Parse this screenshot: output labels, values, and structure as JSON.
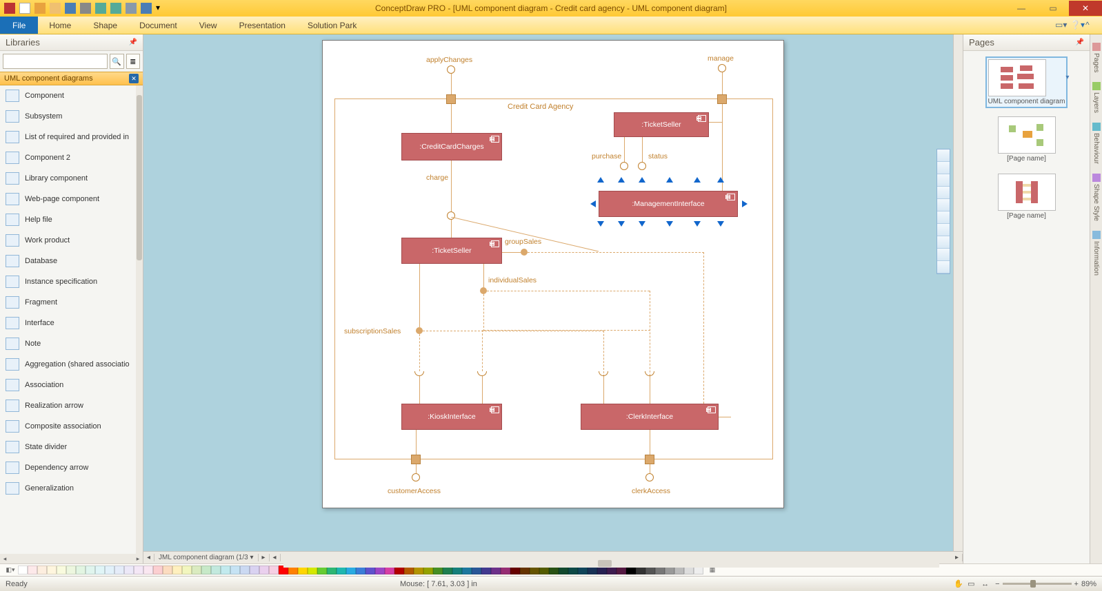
{
  "titlebar": {
    "title": "ConceptDraw PRO - [UML component diagram - Credit card agency - UML component diagram]",
    "quick_icons": [
      "app",
      "new",
      "open",
      "folder",
      "save",
      "cut",
      "undo",
      "redo",
      "print",
      "saveall",
      "chevron"
    ]
  },
  "ribbon": {
    "file": "File",
    "tabs": [
      "Home",
      "Shape",
      "Document",
      "View",
      "Presentation",
      "Solution Park"
    ]
  },
  "libraries": {
    "title": "Libraries",
    "search_placeholder": "",
    "category": "UML component diagrams",
    "items": [
      "Component",
      "Subsystem",
      "List of required and provided in",
      "Component 2",
      "Library component",
      "Web-page component",
      "Help file",
      "Work product",
      "Database",
      "Instance specification",
      "Fragment",
      "Interface",
      "Note",
      "Aggregation (shared associatio",
      "Association",
      "Realization arrow",
      "Composite association",
      "State divider",
      "Dependency arrow",
      "Generalization"
    ]
  },
  "diagram": {
    "container_label": "Credit Card Agency",
    "components": {
      "credit_card_charges": ":CreditCardCharges",
      "ticket_seller_top": ":TicketSeller",
      "management_interface": ":ManagementInterface",
      "ticket_seller_mid": ":TicketSeller",
      "kiosk_interface": ":KioskInterface",
      "clerk_interface": ":ClerkInterface"
    },
    "labels": {
      "apply_changes": "applyChanges",
      "manage": "manage",
      "charge": "charge",
      "purchase": "purchase",
      "status": "status",
      "group_sales": "groupSales",
      "individual_sales": "individualSales",
      "subscription_sales": "subscriptionSales",
      "customer_access": "customerAccess",
      "clerk_access": "clerkAccess"
    },
    "colors": {
      "component_fill": "#c96769",
      "component_border": "#a34a4c",
      "connector": "#dba86b",
      "label_color": "#c1812e",
      "canvas_bg": "#aed2dd",
      "page_bg": "#ffffff",
      "selection": "#1166cc"
    }
  },
  "tab_bar": {
    "active": "JML component diagram (1/3"
  },
  "pages_panel": {
    "title": "Pages",
    "thumbs": [
      {
        "label": "UML component diagram",
        "selected": true
      },
      {
        "label": "[Page name]",
        "selected": false
      },
      {
        "label": "[Page name]",
        "selected": false
      }
    ]
  },
  "vtabs": [
    "Pages",
    "Layers",
    "Behaviour",
    "Shape Style",
    "Information"
  ],
  "statusbar": {
    "ready": "Ready",
    "mouse": "Mouse: [ 7.61, 3.03 ] in",
    "zoom": "89%"
  },
  "colorbar": [
    "#ffffff",
    "#fde9ea",
    "#fdeedf",
    "#fff6de",
    "#f9fbde",
    "#edf7df",
    "#e2f5e2",
    "#e0f5ee",
    "#e0f5f7",
    "#e2f1fa",
    "#e5ecf9",
    "#ece8f8",
    "#f4e7f6",
    "#fae7f1",
    "#fccfd1",
    "#fcdcc0",
    "#fff0be",
    "#f2f6be",
    "#daebc0",
    "#c7e9c8",
    "#c2e9de",
    "#c2eaee",
    "#c6e3f4",
    "#cbd9f2",
    "#d9d2f1",
    "#ead0ee",
    "#f6cfe3",
    "#ff0000",
    "#ff8000",
    "#ffd500",
    "#d4e800",
    "#66cc33",
    "#2cb673",
    "#1fb7b0",
    "#29abe2",
    "#3b7dd8",
    "#5f52cc",
    "#9c46c6",
    "#d63fa5",
    "#b30000",
    "#b35900",
    "#b39400",
    "#94a200",
    "#478f24",
    "#1f7f50",
    "#16807b",
    "#1d789e",
    "#295797",
    "#42398f",
    "#6d318a",
    "#962c73",
    "#660000",
    "#663300",
    "#665400",
    "#545c00",
    "#295214",
    "#12492e",
    "#0d4946",
    "#10455a",
    "#183256",
    "#262152",
    "#3e1c4f",
    "#551942",
    "#000000",
    "#333333",
    "#555555",
    "#777777",
    "#999999",
    "#bbbbbb",
    "#dddddd",
    "#eeeeee"
  ]
}
